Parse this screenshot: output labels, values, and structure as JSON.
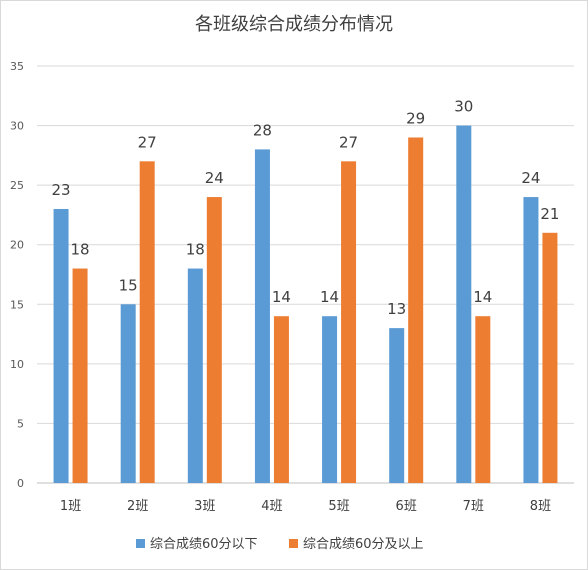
{
  "chart_data": {
    "type": "bar",
    "title": "各班级综合成绩分布情况",
    "xlabel": "",
    "ylabel": "",
    "categories": [
      "1班",
      "2班",
      "3班",
      "4班",
      "5班",
      "6班",
      "7班",
      "8班"
    ],
    "series": [
      {
        "name": "综合成绩60分以下",
        "color": "#5b9bd5",
        "values": [
          23,
          15,
          18,
          28,
          14,
          13,
          30,
          24
        ]
      },
      {
        "name": "综合成绩60分及以上",
        "color": "#ed7d31",
        "values": [
          18,
          27,
          24,
          14,
          27,
          29,
          14,
          21
        ]
      }
    ],
    "ylim": [
      0,
      35
    ],
    "yticks": [
      0,
      5,
      10,
      15,
      20,
      25,
      30,
      35
    ],
    "grid": true,
    "legend": "bottom",
    "data_labels": true
  }
}
